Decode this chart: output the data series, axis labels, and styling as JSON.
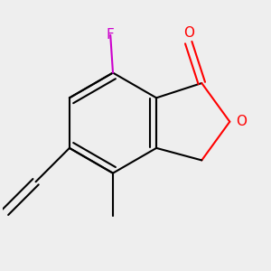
{
  "bg_color": "#eeeeee",
  "bond_color": "#000000",
  "F_color": "#cc00cc",
  "O_color": "#ff0000",
  "line_width": 1.5,
  "font_size_atom": 11,
  "xlim": [
    -2.5,
    2.8
  ],
  "ylim": [
    -2.8,
    2.5
  ]
}
